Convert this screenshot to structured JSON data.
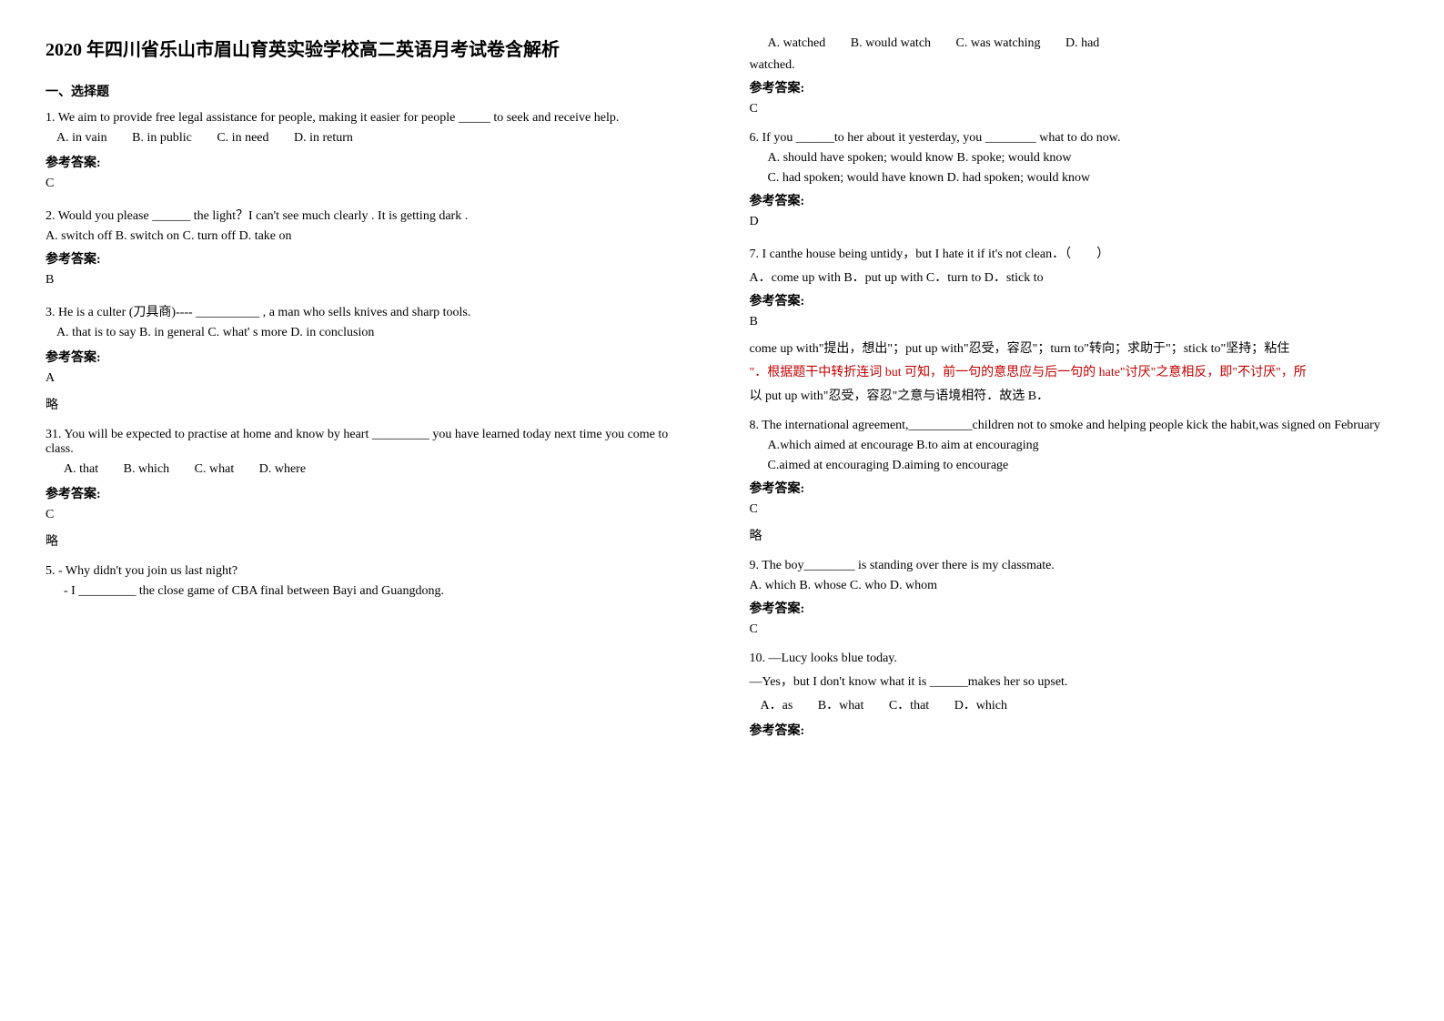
{
  "title": "2020 年四川省乐山市眉山育英实验学校高二英语月考试卷含解析",
  "section1": "一、选择题",
  "q1": {
    "text": "1. We aim to provide free legal assistance for people, making it easier for people _____ to seek and receive help.",
    "optA": "A. in vain",
    "optB": "B. in public",
    "optC": "C. in need",
    "optD": "D. in return",
    "answerLabel": "参考答案:",
    "answer": "C"
  },
  "q2": {
    "text": "2. Would you please ______ the light？I can't see much clearly . It is getting dark .",
    "opts": "A. switch off    B. switch on    C. turn off   D. take on",
    "answerLabel": "参考答案:",
    "answer": "B"
  },
  "q3": {
    "text": "3. He is a culter (刀具商)---- __________ , a man who sells knives and sharp tools.",
    "opts": "A. that is to say    B. in general      C. what' s more    D. in conclusion",
    "answerLabel": "参考答案:",
    "answer": "A",
    "note": "略"
  },
  "q4": {
    "text": "31.  You will be expected to practise at home and know by heart _________ you have learned today next time you come to class.",
    "optA": "A. that",
    "optB": "B. which",
    "optC": "C. what",
    "optD": "D. where",
    "answerLabel": "参考答案:",
    "answer": "C",
    "note": "略"
  },
  "q5": {
    "text": "5. - Why didn't you join us last night?",
    "text2": "- I _________ the close game of CBA final between Bayi and Guangdong.",
    "optA": "A. watched",
    "optB": "B. would watch",
    "optC": "C. was watching",
    "optD": "D. had",
    "optDcont": "watched.",
    "answerLabel": "参考答案:",
    "answer": "C"
  },
  "q6": {
    "text": "6. If you ______to her about it yesterday, you ________ what to do now.",
    "line1": "A. should have spoken; would know    B. spoke; would know",
    "line2": "C. had spoken; would have known    D. had spoken; would know",
    "answerLabel": "参考答案:",
    "answer": "D"
  },
  "q7": {
    "text": "7. I canthe house being untidy，but I hate it if it's not clean．（　　）",
    "opts": "A．come up with        B．put up with  C．turn to       D．stick to",
    "answerLabel": "参考答案:",
    "answer": "B",
    "explain1": "come up with\"提出，想出\"；put up with\"忍受，容忍\"；turn to\"转向；求助于\"；stick to\"坚持；粘住",
    "explain2": "\"．根据题干中转折连词 but 可知，前一句的意思应与后一句的 hate\"讨厌\"之意相反，即\"不讨厌\"，所",
    "explain3": "以 put up with\"忍受，容忍\"之意与语境相符．故选 B．"
  },
  "q8": {
    "text": "8. The international agreement,__________children not to smoke and helping people kick the habit,was signed on February",
    "line1": "A.which aimed at encourage            B.to aim at encouraging",
    "line2": "C.aimed at encouraging              D.aiming to encourage",
    "answerLabel": "参考答案:",
    "answer": "C",
    "note": "略"
  },
  "q9": {
    "text": "9. The boy________ is standing over there is my classmate.",
    "opts": "A. which    B. whose     C. who    D. whom",
    "answerLabel": "参考答案:",
    "answer": "C"
  },
  "q10": {
    "text": "10. —Lucy looks blue today.",
    "text2": "—Yes，but I don't know what it is ______makes her  so upset.",
    "optA": "A．as",
    "optB": "B．what",
    "optC": "C．that",
    "optD": "D．which",
    "answerLabel": "参考答案:"
  }
}
